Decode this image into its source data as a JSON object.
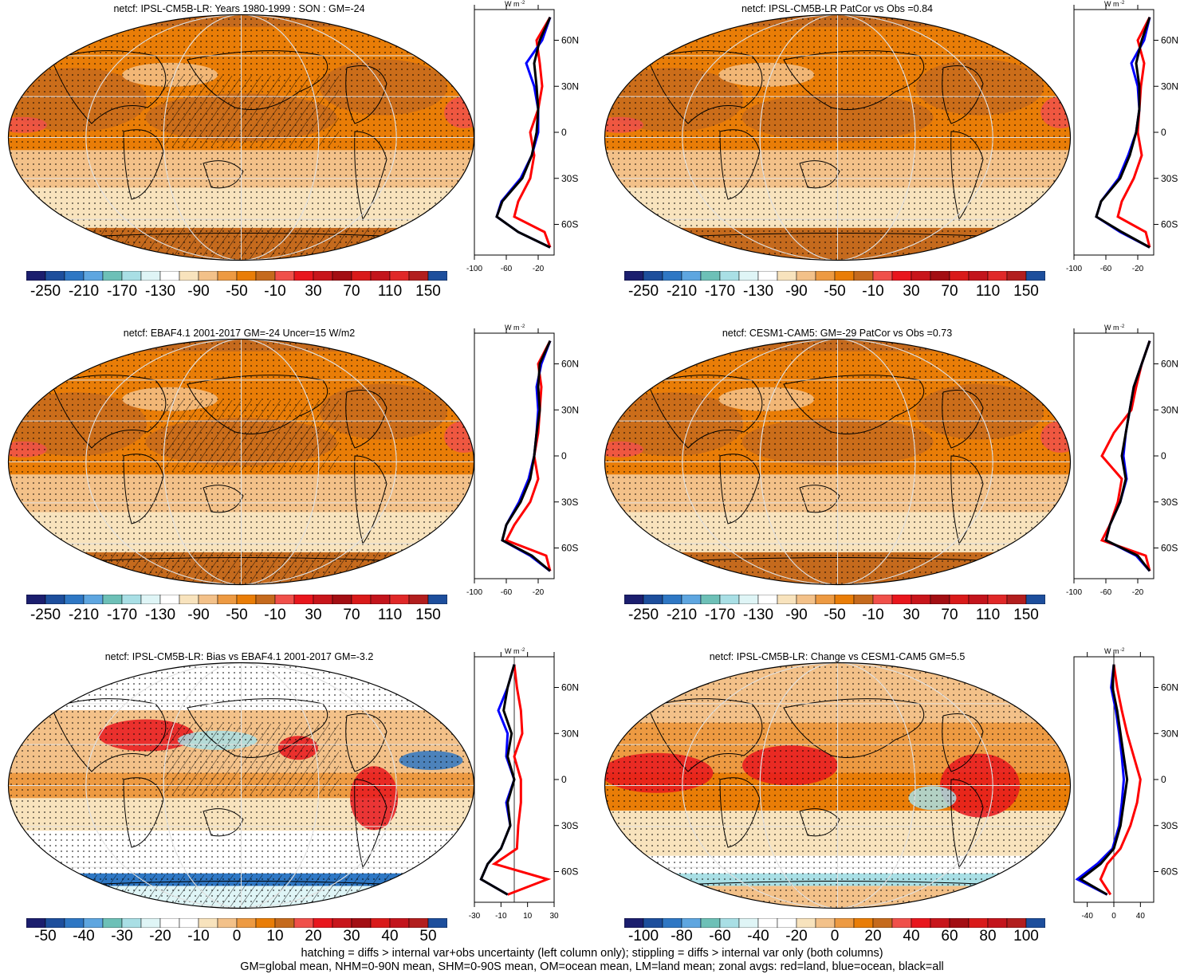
{
  "palette": {
    "abs": [
      "#1b1e6e",
      "#1d4e9c",
      "#2e77c4",
      "#5ea6e0",
      "#6dc0b7",
      "#a9dfe5",
      "#dff5f6",
      "#ffffff",
      "#f8e3bd",
      "#f3c189",
      "#ed9a42",
      "#e97d07",
      "#c56a1d",
      "#f0504a",
      "#e8161d",
      "#c8151b",
      "#a30e13",
      "#d91a1a",
      "#c3141c",
      "#e02828",
      "#b21e1e",
      "#1d4e9c"
    ],
    "bias": [
      "#1b1e6e",
      "#1d4e9c",
      "#2e77c4",
      "#5ea6e0",
      "#6dc0b7",
      "#a9dfe5",
      "#dff5f6",
      "#ffffff",
      "#ffffff",
      "#f8e3bd",
      "#f3c189",
      "#ed9a42",
      "#e97d07",
      "#c56a1d",
      "#f0504a",
      "#e8161d",
      "#c8151b",
      "#a30e13",
      "#d91a1a",
      "#c3141c",
      "#b21e1e",
      "#1d4e9c"
    ],
    "land_line": "#ff0000",
    "ocean_line": "#0000ff",
    "all_line": "#000000"
  },
  "panels": [
    {
      "id": "ipsl",
      "title": "netcf: IPSL-CM5B-LR: Years 1980-1999 : SON : GM=-24",
      "colorbar_labels": [
        "-250",
        "-210",
        "-170",
        "-130",
        "-90",
        "-50",
        "-10",
        "30",
        "70",
        "110",
        "150"
      ],
      "zonal": {
        "units_label": "W m",
        "units_sup": "-2",
        "xticks": [
          "-100",
          "-60",
          "-20"
        ],
        "xlim": [
          -100,
          0
        ],
        "lat_labels": [
          "60N",
          "30N",
          "0",
          "30S",
          "60S"
        ],
        "type": "abs",
        "hatch": true
      }
    },
    {
      "id": "ipsl-patcor",
      "title": "netcf: IPSL-CM5B-LR PatCor vs Obs =0.84",
      "colorbar_labels": [
        "-250",
        "-210",
        "-170",
        "-130",
        "-90",
        "-50",
        "-10",
        "30",
        "70",
        "110",
        "150"
      ],
      "zonal": {
        "units_label": "W m",
        "units_sup": "-2",
        "xticks": [
          "-100",
          "-60",
          "-20"
        ],
        "xlim": [
          -100,
          0
        ],
        "lat_labels": [
          "60N",
          "30N",
          "0",
          "30S",
          "60S"
        ],
        "type": "abs",
        "hatch": false
      }
    },
    {
      "id": "ebaf",
      "title": "netcf: EBAF4.1 2001-2017 GM=-24 Uncer=15 W/m2",
      "colorbar_labels": [
        "-250",
        "-210",
        "-170",
        "-130",
        "-90",
        "-50",
        "-10",
        "30",
        "70",
        "110",
        "150"
      ],
      "zonal": {
        "units_label": "W m",
        "units_sup": "-2",
        "xticks": [
          "-100",
          "-60",
          "-20"
        ],
        "xlim": [
          -100,
          0
        ],
        "lat_labels": [
          "60N",
          "30N",
          "0",
          "30S",
          "60S"
        ],
        "type": "abs",
        "hatch": true
      }
    },
    {
      "id": "cesm",
      "title": "netcf: CESM1-CAM5: GM=-29 PatCor vs Obs =0.73",
      "colorbar_labels": [
        "-250",
        "-210",
        "-170",
        "-130",
        "-90",
        "-50",
        "-10",
        "30",
        "70",
        "110",
        "150"
      ],
      "zonal": {
        "units_label": "W m",
        "units_sup": "-2",
        "xticks": [
          "-100",
          "-60",
          "-20"
        ],
        "xlim": [
          -100,
          0
        ],
        "lat_labels": [
          "60N",
          "30N",
          "0",
          "30S",
          "60S"
        ],
        "type": "abs",
        "hatch": false
      }
    },
    {
      "id": "bias",
      "title": "netcf: IPSL-CM5B-LR: Bias vs EBAF4.1 2001-2017  GM=-3.2",
      "colorbar_labels": [
        "-50",
        "-40",
        "-30",
        "-20",
        "-10",
        "0",
        "10",
        "20",
        "30",
        "40",
        "50"
      ],
      "zonal": {
        "units_label": "W m",
        "units_sup": "-2",
        "xticks": [
          "-30",
          "-10",
          "10",
          "30"
        ],
        "xlim": [
          -30,
          30
        ],
        "lat_labels": [
          "60N",
          "30N",
          "0",
          "30S",
          "60S"
        ],
        "type": "bias",
        "hatch": true
      }
    },
    {
      "id": "change",
      "title": "netcf: IPSL-CM5B-LR: Change vs CESM1-CAM5 GM=5.5",
      "colorbar_labels": [
        "-100",
        "-80",
        "-60",
        "-40",
        "-20",
        "0",
        "20",
        "40",
        "60",
        "80",
        "100"
      ],
      "zonal": {
        "units_label": "W m",
        "units_sup": "-2",
        "xticks": [
          "-40",
          "0",
          "40"
        ],
        "xlim": [
          -60,
          60
        ],
        "lat_labels": [
          "60N",
          "30N",
          "0",
          "30S",
          "60S"
        ],
        "type": "change",
        "hatch": false
      }
    }
  ],
  "footer": {
    "line1": "hatching = diffs > internal var+obs uncertainty (left column only); stippling = diffs > internal var only (both columns)",
    "line2": "GM=global mean, NHM=0-90N mean, SHM=0-90S mean, OM=ocean mean, LM=land mean; zonal avgs: red=land, blue=ocean, black=all"
  },
  "chart_data": [
    {
      "type": "heatmap",
      "title": "netcf: IPSL-CM5B-LR: Years 1980-1999 : SON : GM=-24",
      "colorbar": [
        -250,
        -210,
        -170,
        -130,
        -90,
        -50,
        -10,
        30,
        70,
        110,
        150
      ],
      "zonal_profile": {
        "lat": [
          75,
          60,
          45,
          30,
          15,
          0,
          -15,
          -30,
          -45,
          -55,
          -65,
          -75
        ],
        "all": [
          -5,
          -18,
          -25,
          -22,
          -20,
          -22,
          -28,
          -40,
          -65,
          -72,
          -45,
          -5
        ],
        "land": [
          -5,
          -22,
          -18,
          -15,
          -20,
          -30,
          -25,
          -30,
          -45,
          -50,
          -12,
          -5
        ],
        "ocean": [
          -5,
          -15,
          -35,
          -25,
          -20,
          -20,
          -28,
          -42,
          -66,
          -72,
          -45,
          -5
        ]
      }
    },
    {
      "type": "heatmap",
      "title": "netcf: IPSL-CM5B-LR PatCor vs Obs =0.84",
      "colorbar": [
        -250,
        -210,
        -170,
        -130,
        -90,
        -50,
        -10,
        30,
        70,
        110,
        150
      ],
      "zonal_profile": {
        "lat": [
          75,
          60,
          45,
          30,
          15,
          0,
          -15,
          -30,
          -45,
          -55,
          -65,
          -75
        ],
        "all": [
          -5,
          -15,
          -22,
          -18,
          -18,
          -22,
          -30,
          -42,
          -66,
          -72,
          -40,
          -5
        ],
        "land": [
          -5,
          -20,
          -12,
          -16,
          -18,
          -20,
          -15,
          -25,
          -40,
          -45,
          -10,
          -5
        ],
        "ocean": [
          -5,
          -12,
          -28,
          -20,
          -18,
          -22,
          -32,
          -44,
          -66,
          -72,
          -42,
          -5
        ]
      }
    },
    {
      "type": "heatmap",
      "title": "netcf: EBAF4.1 2001-2017 GM=-24 Uncer=15 W/m2",
      "colorbar": [
        -250,
        -210,
        -170,
        -130,
        -90,
        -50,
        -10,
        30,
        70,
        110,
        150
      ],
      "zonal_profile": {
        "lat": [
          75,
          60,
          45,
          30,
          15,
          0,
          -15,
          -30,
          -45,
          -55,
          -65,
          -75
        ],
        "all": [
          -5,
          -18,
          -20,
          -18,
          -22,
          -25,
          -30,
          -42,
          -60,
          -65,
          -28,
          -5
        ],
        "land": [
          -5,
          -20,
          -16,
          -18,
          -20,
          -25,
          -20,
          -30,
          -50,
          -60,
          -10,
          -5
        ],
        "ocean": [
          -5,
          -16,
          -22,
          -20,
          -22,
          -25,
          -32,
          -44,
          -60,
          -65,
          -30,
          -5
        ]
      }
    },
    {
      "type": "heatmap",
      "title": "netcf: CESM1-CAM5: GM=-29 PatCor vs Obs =0.73",
      "colorbar": [
        -250,
        -210,
        -170,
        -130,
        -90,
        -50,
        -10,
        30,
        70,
        110,
        150
      ],
      "zonal_profile": {
        "lat": [
          75,
          60,
          45,
          30,
          15,
          0,
          -15,
          -30,
          -45,
          -55,
          -65,
          -75
        ],
        "all": [
          -5,
          -15,
          -25,
          -30,
          -35,
          -40,
          -35,
          -42,
          -55,
          -60,
          -20,
          -5
        ],
        "land": [
          -5,
          -15,
          -22,
          -28,
          -50,
          -65,
          -40,
          -45,
          -55,
          -65,
          -10,
          -5
        ],
        "ocean": [
          -5,
          -15,
          -25,
          -30,
          -35,
          -38,
          -34,
          -42,
          -55,
          -60,
          -22,
          -5
        ]
      }
    },
    {
      "type": "heatmap",
      "title": "netcf: IPSL-CM5B-LR: Bias vs EBAF4.1 2001-2017  GM=-3.2",
      "colorbar": [
        -50,
        -40,
        -30,
        -20,
        -10,
        0,
        10,
        20,
        30,
        40,
        50
      ],
      "zonal_profile": {
        "lat": [
          75,
          60,
          45,
          30,
          15,
          0,
          -15,
          -30,
          -45,
          -55,
          -65,
          -75
        ],
        "all": [
          0,
          -5,
          -8,
          -2,
          -5,
          0,
          -5,
          -3,
          -10,
          -20,
          -25,
          -5
        ],
        "land": [
          0,
          2,
          5,
          6,
          0,
          5,
          5,
          3,
          2,
          -15,
          25,
          -5
        ],
        "ocean": [
          0,
          -5,
          -12,
          -5,
          -6,
          0,
          -6,
          -3,
          -10,
          -20,
          -25,
          -5
        ]
      }
    },
    {
      "type": "heatmap",
      "title": "netcf: IPSL-CM5B-LR: Change vs CESM1-CAM5 GM=5.5",
      "colorbar": [
        -100,
        -80,
        -60,
        -40,
        -20,
        0,
        20,
        40,
        60,
        80,
        100
      ],
      "zonal_profile": {
        "lat": [
          75,
          60,
          45,
          30,
          15,
          0,
          -15,
          -30,
          -45,
          -55,
          -65,
          -75
        ],
        "all": [
          0,
          -2,
          5,
          10,
          15,
          20,
          15,
          10,
          0,
          -20,
          -50,
          -10
        ],
        "land": [
          0,
          5,
          12,
          20,
          30,
          40,
          35,
          25,
          10,
          -10,
          -20,
          -5
        ],
        "ocean": [
          0,
          -4,
          3,
          8,
          12,
          15,
          12,
          8,
          -2,
          -25,
          -55,
          -10
        ]
      }
    }
  ]
}
